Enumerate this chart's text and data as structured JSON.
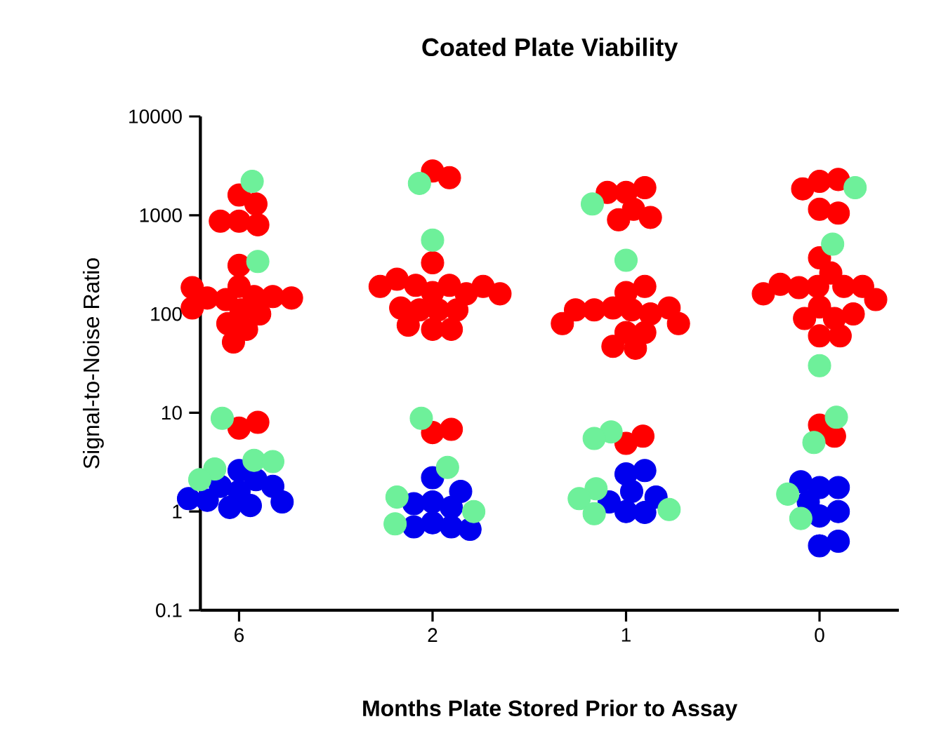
{
  "chart_data": {
    "type": "scatter",
    "title": "Coated Plate Viability",
    "xlabel": "Months Plate Stored Prior to Assay",
    "ylabel": "Signal-to-Noise Ratio",
    "log": "y",
    "marker": "circle",
    "grid": false,
    "categories": [
      "6",
      "2",
      "1",
      "0"
    ],
    "ylim": [
      0.1,
      10000
    ],
    "yticks": [
      0.1,
      1,
      10,
      100,
      1000,
      10000
    ],
    "series": [
      {
        "color": "#ff0000",
        "x": [
          "6",
          "6",
          "6",
          "6",
          "6",
          "6",
          "6",
          "6",
          "6",
          "6",
          "6",
          "6",
          "6",
          "6",
          "6",
          "6",
          "6",
          "6",
          "6",
          "6",
          "6",
          "2",
          "2",
          "2",
          "2",
          "2",
          "2",
          "2",
          "2",
          "2",
          "2",
          "2",
          "2",
          "2",
          "2",
          "2",
          "2",
          "2",
          "2",
          "2",
          "2",
          "1",
          "1",
          "1",
          "1",
          "1",
          "1",
          "1",
          "1",
          "1",
          "1",
          "1",
          "1",
          "1",
          "1",
          "1",
          "1",
          "1",
          "1",
          "1",
          "1",
          "1",
          "1",
          "0",
          "0",
          "0",
          "0",
          "0",
          "0",
          "0",
          "0",
          "0",
          "0",
          "0",
          "0",
          "0",
          "0",
          "0",
          "0",
          "0",
          "0",
          "0",
          "0",
          "0",
          "0"
        ],
        "values": [
          1600,
          1300,
          870,
          870,
          800,
          310,
          190,
          150,
          140,
          145,
          150,
          185,
          145,
          110,
          100,
          115,
          80,
          70,
          52,
          7,
          8,
          2800,
          2400,
          330,
          165,
          195,
          195,
          160,
          225,
          190,
          190,
          160,
          110,
          110,
          115,
          110,
          70,
          77,
          70,
          6.3,
          6.8,
          1700,
          1900,
          1700,
          1150,
          900,
          950,
          165,
          190,
          110,
          115,
          100,
          110,
          115,
          110,
          80,
          65,
          65,
          80,
          47,
          45,
          4.9,
          5.8,
          2200,
          2300,
          1850,
          1150,
          1050,
          370,
          260,
          190,
          185,
          190,
          200,
          190,
          160,
          118,
          140,
          90,
          90,
          100,
          60,
          60,
          7.5,
          5.8
        ]
      },
      {
        "color": "#0000ee",
        "x": [
          "6",
          "6",
          "6",
          "6",
          "6",
          "6",
          "6",
          "6",
          "6",
          "6",
          "2",
          "2",
          "2",
          "2",
          "2",
          "2",
          "2",
          "2",
          "2",
          "1",
          "1",
          "1",
          "1",
          "1",
          "1",
          "1",
          "0",
          "0",
          "0",
          "0",
          "0",
          "0",
          "0",
          "0"
        ],
        "values": [
          2.6,
          2.1,
          1.6,
          1.8,
          1.8,
          1.15,
          1.3,
          1.25,
          1.35,
          1.1,
          2.2,
          1.25,
          1.1,
          1.2,
          1.6,
          0.77,
          0.7,
          0.7,
          0.66,
          2.4,
          2.6,
          1.0,
          0.98,
          1.25,
          1.4,
          1.6,
          1.75,
          1.75,
          2.0,
          0.9,
          1.0,
          0.45,
          0.5,
          1.25
        ]
      },
      {
        "color": "#6ef09a",
        "x": [
          "6",
          "6",
          "6",
          "6",
          "6",
          "6",
          "6",
          "2",
          "2",
          "2",
          "2",
          "2",
          "2",
          "2",
          "1",
          "1",
          "1",
          "1",
          "1",
          "1",
          "1",
          "1",
          "0",
          "0",
          "0",
          "0",
          "0",
          "0",
          "0"
        ],
        "values": [
          2200,
          340,
          8.8,
          3.3,
          2.7,
          3.2,
          2.1,
          2100,
          560,
          8.8,
          2.8,
          1.4,
          1.0,
          0.75,
          1300,
          350,
          6.4,
          5.5,
          1.7,
          1.35,
          1.05,
          0.95,
          1900,
          510,
          30,
          9.0,
          5.0,
          1.5,
          0.85
        ]
      }
    ]
  }
}
